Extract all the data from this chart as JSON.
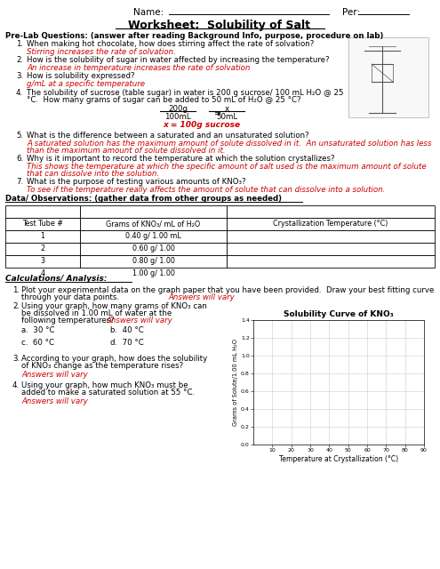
{
  "title": "Worksheet:  Solubility of Salt",
  "pre_lab_header": "Pre-Lab Questions: (answer after reading Background Info, purpose, procedure on lab)",
  "questions": [
    {
      "num": "1.",
      "q": "When making hot chocolate, how does stirring affect the rate of solvation?",
      "a": "Stirring increases the rate of solvation."
    },
    {
      "num": "2.",
      "q": "How is the solubility of sugar in water affected by increasing the temperature?",
      "a": "An increase in temperature increases the rate of solvation"
    },
    {
      "num": "3.",
      "q": "How is solubility expressed?",
      "a": "g/mL at a specific temperature"
    },
    {
      "num": "4.",
      "q1": "The solubility of sucrose (table sugar) in water is 200 g sucrose/ 100 mL H₂O @ 25",
      "q2": "°C.  How many grams of sugar can be added to 50 mL of H₂O @ 25 °C?",
      "a_result": "x = 100g sucrose"
    },
    {
      "num": "5.",
      "q": "What is the difference between a saturated and an unsaturated solution?",
      "a1": "A saturated solution has the maximum amount of solute dissolved in it.  An unsaturated solution has less",
      "a2": "than the maximum amount of solute dissolved in it."
    },
    {
      "num": "6.",
      "q": "Why is it important to record the temperature at which the solution crystallizes?",
      "a1": "This shows the temperature at which the specific amount of salt used is the maximum amount of solute",
      "a2": "that can dissolve into the solution."
    },
    {
      "num": "7.",
      "q": "What is the purpose of testing various amounts of KNO₃?",
      "a": "To see if the temperature really affects the amount of solute that can dissolve into a solution."
    }
  ],
  "data_header": "Data/ Observations: (gather data from other groups as needed)",
  "table_headers": [
    "Test Tube #",
    "Grams of KNO₃/ mL of H₂O",
    "Crystallization Temperature (°C)"
  ],
  "table_rows": [
    [
      "1",
      "0.40 g/ 1.00 mL",
      ""
    ],
    [
      "2",
      "0.60 g/ 1.00",
      ""
    ],
    [
      "3",
      "0.80 g/ 1.00",
      ""
    ],
    [
      "4",
      "1.00 g/ 1.00",
      ""
    ]
  ],
  "calc_header": "Calculations/ Analysis:",
  "calc_q1": "Plot your experimental data on the graph paper that you have been provided.  Draw your best fitting curve",
  "calc_q1b": "through your data points.",
  "calc_q1a": "Answers will vary",
  "calc_q2": "Using your graph, how many grams of KNO₃ can",
  "calc_q2b": "be dissolved in 1.00 mL of water at the",
  "calc_q2c": "following temperatures?",
  "calc_q2a": "Answers will vary",
  "calc_q2_subs": [
    [
      "a.  30 °C",
      "b.  40 °C"
    ],
    [
      "c.  60 °C",
      "d.  70 °C"
    ]
  ],
  "calc_q3": "According to your graph, how does the solubility",
  "calc_q3b": "of KNO₃ change as the temperature rises?",
  "calc_q3a": "Answers will vary",
  "calc_q4": "Using your graph, how much KNO₃ must be",
  "calc_q4b": "added to make a saturated solution at 55 °C.",
  "calc_q4a": "Answers will vary",
  "graph_title": "Solubility Curve of KNO₃",
  "graph_xlabel": "Temperature at Crystallization (°C)",
  "graph_ylabel": "Grams of Solute/1.00 mL H₂O",
  "graph_xlim": [
    0,
    90
  ],
  "graph_ylim": [
    0.0,
    1.4
  ],
  "graph_xticks": [
    10,
    20,
    30,
    40,
    50,
    60,
    70,
    80,
    90
  ],
  "graph_yticks": [
    0.0,
    0.2,
    0.4,
    0.6,
    0.8,
    1.0,
    1.2,
    1.4
  ],
  "answer_color": "#cc0000",
  "black": "#000000",
  "bg_color": "#ffffff"
}
